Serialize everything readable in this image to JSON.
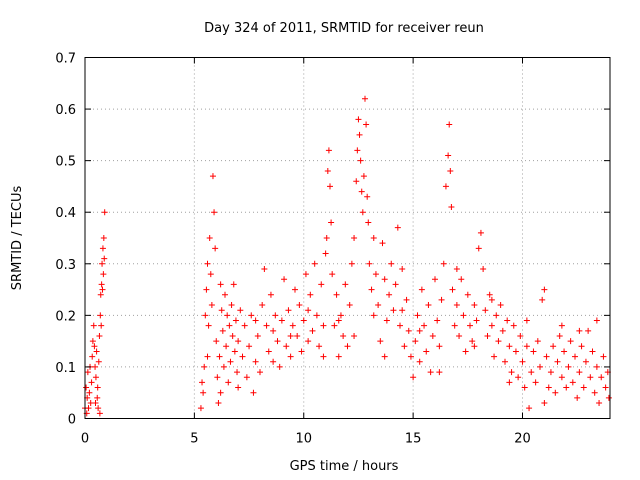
{
  "chart_data": {
    "type": "scatter",
    "title": "Day 324 of 2011, SRMTID for receiver reun",
    "xlabel": "GPS time / hours",
    "ylabel": "SRMTID / TECUs",
    "xlim": [
      0,
      24
    ],
    "ylim": [
      0,
      0.7
    ],
    "x_ticks": [
      0,
      5,
      10,
      15,
      20
    ],
    "x_tick_labels": [
      "0",
      "5",
      "10",
      "15",
      "20"
    ],
    "y_ticks": [
      0,
      0.1,
      0.2,
      0.3,
      0.4,
      0.5,
      0.6,
      0.7
    ],
    "y_tick_labels": [
      "0",
      "0.1",
      "0.2",
      "0.3",
      "0.4",
      "0.5",
      "0.6",
      "0.7"
    ],
    "grid": true,
    "marker": "plus",
    "color": "#ff0000",
    "series": [
      {
        "name": "SRMTID",
        "points": [
          [
            0.0,
            0.02
          ],
          [
            0.05,
            0.06
          ],
          [
            0.08,
            0.01
          ],
          [
            0.1,
            0.04
          ],
          [
            0.13,
            0.09
          ],
          [
            0.16,
            0.02
          ],
          [
            0.2,
            0.05
          ],
          [
            0.23,
            0.1
          ],
          [
            0.26,
            0.03
          ],
          [
            0.3,
            0.07
          ],
          [
            0.33,
            0.12
          ],
          [
            0.36,
            0.15
          ],
          [
            0.4,
            0.18
          ],
          [
            0.43,
            0.14
          ],
          [
            0.46,
            0.1
          ],
          [
            0.5,
            0.08
          ],
          [
            0.53,
            0.13
          ],
          [
            0.56,
            0.04
          ],
          [
            0.6,
            0.02
          ],
          [
            0.63,
            0.11
          ],
          [
            0.66,
            0.16
          ],
          [
            0.7,
            0.2
          ],
          [
            0.72,
            0.24
          ],
          [
            0.74,
            0.18
          ],
          [
            0.76,
            0.26
          ],
          [
            0.78,
            0.3
          ],
          [
            0.8,
            0.25
          ],
          [
            0.82,
            0.33
          ],
          [
            0.84,
            0.28
          ],
          [
            0.86,
            0.35
          ],
          [
            0.88,
            0.31
          ],
          [
            0.9,
            0.4
          ],
          [
            0.68,
            0.01
          ],
          [
            0.58,
            0.06
          ],
          [
            0.48,
            0.03
          ],
          [
            5.3,
            0.02
          ],
          [
            5.35,
            0.07
          ],
          [
            5.4,
            0.05
          ],
          [
            5.45,
            0.1
          ],
          [
            5.5,
            0.2
          ],
          [
            5.55,
            0.25
          ],
          [
            5.6,
            0.3
          ],
          [
            5.65,
            0.18
          ],
          [
            5.7,
            0.35
          ],
          [
            5.75,
            0.28
          ],
          [
            5.8,
            0.22
          ],
          [
            5.85,
            0.47
          ],
          [
            5.9,
            0.4
          ],
          [
            5.95,
            0.33
          ],
          [
            6.0,
            0.15
          ],
          [
            6.05,
            0.08
          ],
          [
            6.1,
            0.03
          ],
          [
            6.15,
            0.12
          ],
          [
            6.2,
            0.05
          ],
          [
            6.25,
            0.21
          ],
          [
            6.3,
            0.17
          ],
          [
            6.35,
            0.1
          ],
          [
            6.4,
            0.24
          ],
          [
            6.45,
            0.14
          ],
          [
            6.5,
            0.2
          ],
          [
            6.55,
            0.07
          ],
          [
            6.6,
            0.18
          ],
          [
            6.65,
            0.11
          ],
          [
            6.7,
            0.22
          ],
          [
            6.75,
            0.16
          ],
          [
            6.8,
            0.26
          ],
          [
            6.85,
            0.13
          ],
          [
            6.9,
            0.19
          ],
          [
            6.95,
            0.09
          ],
          [
            7.0,
            0.15
          ],
          [
            7.1,
            0.21
          ],
          [
            7.2,
            0.12
          ],
          [
            7.3,
            0.18
          ],
          [
            7.4,
            0.08
          ],
          [
            7.5,
            0.14
          ],
          [
            7.6,
            0.2
          ],
          [
            7.7,
            0.05
          ],
          [
            7.8,
            0.11
          ],
          [
            7.9,
            0.16
          ],
          [
            8.0,
            0.09
          ],
          [
            8.1,
            0.22
          ],
          [
            8.2,
            0.29
          ],
          [
            8.3,
            0.18
          ],
          [
            8.4,
            0.13
          ],
          [
            8.5,
            0.24
          ],
          [
            8.6,
            0.17
          ],
          [
            8.7,
            0.2
          ],
          [
            8.8,
            0.15
          ],
          [
            8.9,
            0.1
          ],
          [
            9.0,
            0.19
          ],
          [
            9.1,
            0.27
          ],
          [
            9.2,
            0.14
          ],
          [
            9.3,
            0.21
          ],
          [
            9.4,
            0.12
          ],
          [
            9.5,
            0.18
          ],
          [
            9.6,
            0.25
          ],
          [
            9.7,
            0.16
          ],
          [
            9.8,
            0.22
          ],
          [
            9.9,
            0.13
          ],
          [
            10.0,
            0.19
          ],
          [
            10.1,
            0.28
          ],
          [
            10.2,
            0.15
          ],
          [
            10.3,
            0.24
          ],
          [
            10.4,
            0.17
          ],
          [
            10.5,
            0.3
          ],
          [
            10.6,
            0.2
          ],
          [
            10.7,
            0.14
          ],
          [
            10.8,
            0.26
          ],
          [
            10.9,
            0.18
          ],
          [
            11.0,
            0.32
          ],
          [
            11.05,
            0.35
          ],
          [
            11.1,
            0.48
          ],
          [
            11.15,
            0.52
          ],
          [
            11.2,
            0.45
          ],
          [
            11.25,
            0.38
          ],
          [
            11.3,
            0.28
          ],
          [
            11.4,
            0.18
          ],
          [
            11.5,
            0.24
          ],
          [
            11.6,
            0.12
          ],
          [
            11.7,
            0.2
          ],
          [
            11.8,
            0.16
          ],
          [
            11.9,
            0.26
          ],
          [
            12.0,
            0.14
          ],
          [
            12.1,
            0.22
          ],
          [
            12.2,
            0.3
          ],
          [
            12.3,
            0.35
          ],
          [
            12.4,
            0.46
          ],
          [
            12.45,
            0.52
          ],
          [
            12.5,
            0.58
          ],
          [
            12.55,
            0.55
          ],
          [
            12.6,
            0.5
          ],
          [
            12.65,
            0.44
          ],
          [
            12.7,
            0.4
          ],
          [
            12.75,
            0.47
          ],
          [
            12.8,
            0.62
          ],
          [
            12.85,
            0.57
          ],
          [
            12.9,
            0.43
          ],
          [
            12.95,
            0.38
          ],
          [
            13.0,
            0.3
          ],
          [
            13.1,
            0.25
          ],
          [
            13.2,
            0.2
          ],
          [
            13.3,
            0.28
          ],
          [
            13.4,
            0.22
          ],
          [
            13.5,
            0.15
          ],
          [
            13.6,
            0.34
          ],
          [
            13.7,
            0.27
          ],
          [
            13.8,
            0.19
          ],
          [
            13.9,
            0.24
          ],
          [
            14.0,
            0.3
          ],
          [
            14.1,
            0.21
          ],
          [
            14.2,
            0.26
          ],
          [
            14.3,
            0.37
          ],
          [
            14.4,
            0.18
          ],
          [
            14.5,
            0.29
          ],
          [
            14.6,
            0.14
          ],
          [
            14.7,
            0.23
          ],
          [
            14.8,
            0.17
          ],
          [
            14.9,
            0.12
          ],
          [
            15.0,
            0.08
          ],
          [
            15.1,
            0.15
          ],
          [
            15.2,
            0.2
          ],
          [
            15.3,
            0.11
          ],
          [
            15.4,
            0.25
          ],
          [
            15.5,
            0.18
          ],
          [
            15.6,
            0.13
          ],
          [
            15.7,
            0.22
          ],
          [
            15.8,
            0.09
          ],
          [
            15.9,
            0.16
          ],
          [
            16.0,
            0.27
          ],
          [
            16.1,
            0.19
          ],
          [
            16.2,
            0.14
          ],
          [
            16.3,
            0.23
          ],
          [
            16.4,
            0.3
          ],
          [
            16.5,
            0.45
          ],
          [
            16.6,
            0.51
          ],
          [
            16.65,
            0.57
          ],
          [
            16.7,
            0.48
          ],
          [
            16.75,
            0.41
          ],
          [
            16.8,
            0.25
          ],
          [
            16.9,
            0.18
          ],
          [
            17.0,
            0.22
          ],
          [
            17.1,
            0.16
          ],
          [
            17.2,
            0.27
          ],
          [
            17.3,
            0.2
          ],
          [
            17.4,
            0.13
          ],
          [
            17.5,
            0.24
          ],
          [
            17.6,
            0.18
          ],
          [
            17.7,
            0.15
          ],
          [
            17.8,
            0.22
          ],
          [
            17.9,
            0.19
          ],
          [
            18.0,
            0.33
          ],
          [
            18.1,
            0.36
          ],
          [
            18.2,
            0.29
          ],
          [
            18.3,
            0.21
          ],
          [
            18.4,
            0.16
          ],
          [
            18.5,
            0.24
          ],
          [
            18.6,
            0.18
          ],
          [
            18.7,
            0.12
          ],
          [
            18.8,
            0.2
          ],
          [
            18.9,
            0.15
          ],
          [
            19.0,
            0.22
          ],
          [
            19.1,
            0.17
          ],
          [
            19.2,
            0.11
          ],
          [
            19.3,
            0.19
          ],
          [
            19.4,
            0.14
          ],
          [
            19.5,
            0.09
          ],
          [
            19.6,
            0.18
          ],
          [
            19.7,
            0.13
          ],
          [
            19.8,
            0.08
          ],
          [
            19.9,
            0.16
          ],
          [
            20.0,
            0.11
          ],
          [
            20.1,
            0.06
          ],
          [
            20.2,
            0.14
          ],
          [
            20.3,
            0.02
          ],
          [
            20.4,
            0.09
          ],
          [
            20.5,
            0.13
          ],
          [
            20.6,
            0.07
          ],
          [
            20.7,
            0.15
          ],
          [
            20.8,
            0.1
          ],
          [
            20.9,
            0.23
          ],
          [
            21.0,
            0.25
          ],
          [
            21.1,
            0.12
          ],
          [
            21.2,
            0.06
          ],
          [
            21.3,
            0.09
          ],
          [
            21.4,
            0.14
          ],
          [
            21.5,
            0.05
          ],
          [
            21.6,
            0.11
          ],
          [
            21.7,
            0.16
          ],
          [
            21.8,
            0.08
          ],
          [
            21.9,
            0.13
          ],
          [
            22.0,
            0.06
          ],
          [
            22.1,
            0.1
          ],
          [
            22.2,
            0.15
          ],
          [
            22.3,
            0.07
          ],
          [
            22.4,
            0.12
          ],
          [
            22.5,
            0.04
          ],
          [
            22.6,
            0.09
          ],
          [
            22.7,
            0.14
          ],
          [
            22.8,
            0.06
          ],
          [
            22.9,
            0.11
          ],
          [
            23.0,
            0.17
          ],
          [
            23.1,
            0.08
          ],
          [
            23.2,
            0.13
          ],
          [
            23.3,
            0.05
          ],
          [
            23.4,
            0.1
          ],
          [
            23.5,
            0.03
          ],
          [
            23.6,
            0.08
          ],
          [
            23.7,
            0.12
          ],
          [
            23.8,
            0.06
          ],
          [
            23.9,
            0.09
          ],
          [
            23.95,
            0.04
          ],
          [
            5.6,
            0.12
          ],
          [
            6.2,
            0.26
          ],
          [
            7.0,
            0.06
          ],
          [
            7.8,
            0.19
          ],
          [
            8.6,
            0.11
          ],
          [
            9.4,
            0.16
          ],
          [
            10.2,
            0.21
          ],
          [
            10.9,
            0.12
          ],
          [
            11.6,
            0.19
          ],
          [
            12.3,
            0.16
          ],
          [
            13.2,
            0.35
          ],
          [
            13.7,
            0.12
          ],
          [
            14.5,
            0.21
          ],
          [
            15.3,
            0.17
          ],
          [
            16.2,
            0.09
          ],
          [
            17.0,
            0.29
          ],
          [
            17.8,
            0.14
          ],
          [
            18.6,
            0.23
          ],
          [
            19.4,
            0.07
          ],
          [
            20.2,
            0.19
          ],
          [
            21.0,
            0.03
          ],
          [
            21.8,
            0.18
          ],
          [
            22.6,
            0.17
          ],
          [
            23.4,
            0.19
          ]
        ]
      }
    ]
  }
}
